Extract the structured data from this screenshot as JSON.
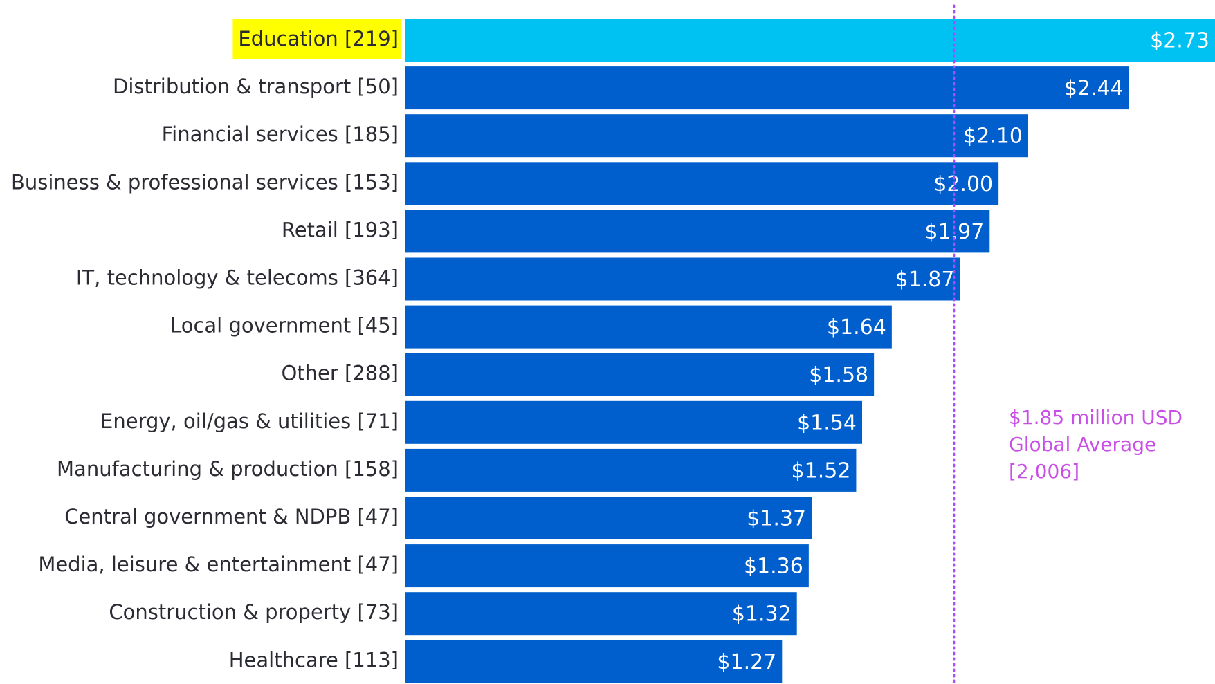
{
  "chart_data": {
    "type": "barh",
    "categories": [
      "Education [219]",
      "Distribution & transport [50]",
      "Financial services [185]",
      "Business & professional services [153]",
      "Retail [193]",
      "IT, technology & telecoms [364]",
      "Local government [45]",
      "Other [288]",
      "Energy, oil/gas & utilities [71]",
      "Manufacturing & production [158]",
      "Central government & NDPB [47]",
      "Media, leisure & entertainment [47]",
      "Construction & property [73]",
      "Healthcare [113]"
    ],
    "values": [
      2.73,
      2.44,
      2.1,
      2.0,
      1.97,
      1.87,
      1.64,
      1.58,
      1.54,
      1.52,
      1.37,
      1.36,
      1.32,
      1.27
    ],
    "value_labels": [
      "$2.73",
      "$2.44",
      "$2.10",
      "$2.00",
      "$1.97",
      "$1.87",
      "$1.64",
      "$1.58",
      "$1.54",
      "$1.52",
      "$1.37",
      "$1.36",
      "$1.32",
      "$1.27"
    ],
    "colors": [
      "#00c2f2",
      "#005fcc",
      "#005fcc",
      "#005fcc",
      "#005fcc",
      "#005fcc",
      "#005fcc",
      "#005fcc",
      "#005fcc",
      "#005fcc",
      "#005fcc",
      "#005fcc",
      "#005fcc",
      "#005fcc"
    ],
    "highlight": "Education [219]",
    "highlight_color": "#ffff00",
    "reference_line": {
      "value": 1.85,
      "color": "#a64dff",
      "label": [
        "$1.85 million USD",
        "Global Average",
        "[2,006]"
      ]
    }
  }
}
